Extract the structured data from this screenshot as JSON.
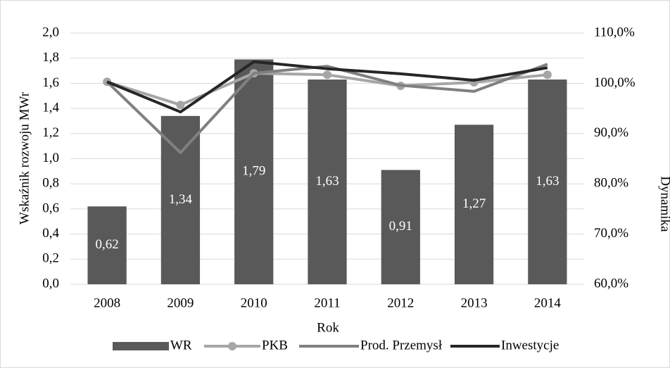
{
  "chart_data": {
    "type": "bar",
    "x_label": "Rok",
    "y_label": "Wskaźnik rozwoju  MWr",
    "y2_label": "Dynamika",
    "categories": [
      "2008",
      "2009",
      "2010",
      "2011",
      "2012",
      "2013",
      "2014"
    ],
    "series": [
      {
        "name": "WR",
        "color": "#595959",
        "type": "bar",
        "values": [
          0.62,
          1.34,
          1.79,
          1.63,
          0.91,
          1.27,
          1.63
        ],
        "value_labels": [
          "0,62",
          "1,34",
          "1,79",
          "1,63",
          "0,91",
          "1,27",
          "1,63"
        ]
      },
      {
        "name": "PKB",
        "color": "#a6a6a6",
        "type": "line",
        "markers": true,
        "axis": "y2",
        "values": [
          100.3,
          95.7,
          102.0,
          101.7,
          99.5,
          100.2,
          101.7
        ]
      },
      {
        "name": "Prod. Przemysł",
        "color": "#808080",
        "type": "line",
        "axis": "y2",
        "values": [
          100.3,
          86.2,
          102.0,
          103.4,
          99.6,
          98.4,
          103.8
        ]
      },
      {
        "name": "Inwestycje",
        "color": "#262626",
        "type": "line",
        "axis": "y2",
        "values": [
          100.3,
          94.3,
          104.3,
          102.9,
          101.9,
          100.6,
          103.1
        ]
      }
    ],
    "ylim": [
      0,
      2
    ],
    "yticks": [
      {
        "value": 0,
        "label": "0,0"
      },
      {
        "value": 0.2,
        "label": "0,2"
      },
      {
        "value": 0.4,
        "label": "0,4"
      },
      {
        "value": 0.6,
        "label": "0,6"
      },
      {
        "value": 0.8,
        "label": "0,8"
      },
      {
        "value": 1.0,
        "label": "1,0"
      },
      {
        "value": 1.2,
        "label": "1,2"
      },
      {
        "value": 1.4,
        "label": "1,4"
      },
      {
        "value": 1.6,
        "label": "1,6"
      },
      {
        "value": 1.8,
        "label": "1,8"
      },
      {
        "value": 2.0,
        "label": "2,0"
      }
    ],
    "y2lim": [
      60,
      110
    ],
    "y2ticks": [
      {
        "value": 60,
        "label": "60,0%"
      },
      {
        "value": 70,
        "label": "70,0%"
      },
      {
        "value": 80,
        "label": "80,0%"
      },
      {
        "value": 90,
        "label": "90,0%"
      },
      {
        "value": 100,
        "label": "100,0%"
      },
      {
        "value": 110,
        "label": "110,0%"
      }
    ],
    "grid": true,
    "legend": "bottom"
  }
}
